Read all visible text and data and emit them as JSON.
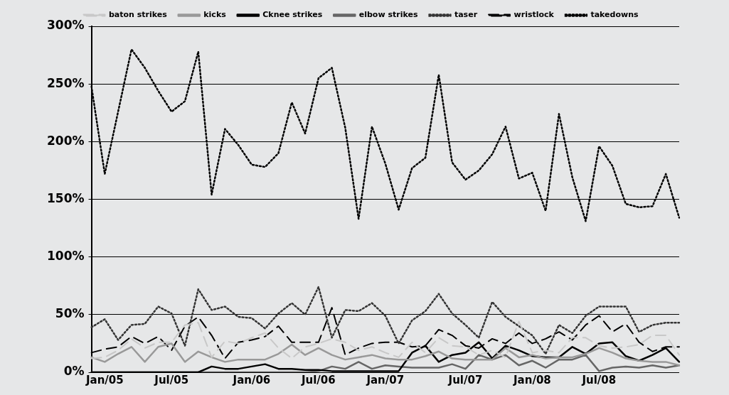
{
  "chart_data": {
    "type": "line",
    "categories": [
      null,
      "Jan/05",
      null,
      null,
      null,
      null,
      "Jul/05",
      null,
      null,
      null,
      null,
      null,
      "Jan/06",
      null,
      null,
      null,
      null,
      "Jul/06",
      null,
      null,
      null,
      null,
      "Jan/07",
      null,
      null,
      null,
      null,
      null,
      "Jul/07",
      null,
      null,
      null,
      null,
      "Jan/08",
      null,
      null,
      null,
      null,
      "Jul/08",
      null,
      null,
      null,
      null,
      null,
      null
    ],
    "ylim": [
      0,
      300
    ],
    "yticks": [
      {
        "value": 0,
        "label": "0%"
      },
      {
        "value": 50,
        "label": "50%"
      },
      {
        "value": 100,
        "label": "100%"
      },
      {
        "value": 150,
        "label": "150%"
      },
      {
        "value": 200,
        "label": "200%"
      },
      {
        "value": 250,
        "label": "250%"
      },
      {
        "value": 300,
        "label": "300%"
      }
    ],
    "grid": "y",
    "legend": "top",
    "marker": "none",
    "series": [
      {
        "name": "baton strikes",
        "color": "#c8c8c8",
        "line_style": "dashed",
        "values": [
          12,
          13,
          19,
          29,
          21,
          26,
          26,
          41,
          43,
          13,
          27,
          25,
          30,
          34,
          21,
          12,
          22,
          25,
          29,
          26,
          19,
          22,
          17,
          13,
          26,
          17,
          30,
          23,
          22,
          15,
          19,
          13,
          44,
          17,
          19,
          17,
          30,
          30,
          23,
          21,
          22,
          24,
          32,
          32,
          15
        ]
      },
      {
        "name": "kicks",
        "color": "#999999",
        "line_style": "solid",
        "values": [
          13,
          9,
          16,
          22,
          9,
          22,
          25,
          9,
          18,
          13,
          9,
          11,
          11,
          11,
          16,
          24,
          15,
          21,
          15,
          11,
          13,
          15,
          12,
          11,
          11,
          14,
          18,
          12,
          11,
          11,
          11,
          21,
          13,
          15,
          12,
          13,
          13,
          16,
          21,
          17,
          12,
          10,
          9,
          9,
          6
        ]
      },
      {
        "name": "Cknee strikes",
        "color": "#000000",
        "line_style": "solid",
        "values": [
          0,
          0,
          0,
          0,
          0,
          0,
          0,
          0,
          0,
          5,
          3,
          3,
          5,
          7,
          3,
          3,
          2,
          2,
          1,
          1,
          1,
          1,
          1,
          1,
          17,
          23,
          9,
          15,
          17,
          26,
          12,
          23,
          19,
          14,
          13,
          13,
          22,
          16,
          25,
          26,
          14,
          10,
          15,
          21,
          9
        ]
      },
      {
        "name": "elbow strikes",
        "color": "#666666",
        "line_style": "solid",
        "values": [
          0,
          0,
          0,
          0,
          0,
          0,
          0,
          0,
          0,
          0,
          0,
          0,
          0,
          0,
          0,
          0,
          0,
          1,
          5,
          3,
          9,
          3,
          6,
          5,
          4,
          4,
          4,
          7,
          3,
          15,
          11,
          15,
          6,
          10,
          4,
          11,
          11,
          15,
          1,
          4,
          5,
          4,
          6,
          4,
          6
        ]
      },
      {
        "name": "taser",
        "color": "#333333",
        "line_style": "dotted",
        "values": [
          39,
          46,
          28,
          41,
          42,
          57,
          51,
          23,
          72,
          54,
          57,
          48,
          47,
          38,
          51,
          60,
          50,
          74,
          30,
          54,
          53,
          60,
          49,
          25,
          45,
          53,
          68,
          51,
          41,
          30,
          61,
          48,
          40,
          32,
          16,
          41,
          34,
          49,
          57,
          57,
          57,
          35,
          41,
          43,
          43
        ]
      },
      {
        "name": "wristlock",
        "color": "#000000",
        "line_style": "dashed",
        "values": [
          17,
          20,
          22,
          31,
          25,
          31,
          19,
          40,
          48,
          32,
          12,
          26,
          28,
          31,
          40,
          26,
          26,
          26,
          56,
          15,
          21,
          25,
          26,
          26,
          22,
          23,
          37,
          32,
          23,
          21,
          29,
          25,
          34,
          25,
          29,
          35,
          28,
          41,
          49,
          35,
          42,
          26,
          18,
          22,
          22
        ]
      },
      {
        "name": "takedowns",
        "color": "#000000",
        "line_style": "dotted",
        "values": [
          248,
          172,
          226,
          280,
          264,
          244,
          226,
          235,
          278,
          154,
          211,
          197,
          180,
          178,
          190,
          234,
          207,
          255,
          264,
          212,
          133,
          213,
          181,
          141,
          177,
          186,
          258,
          182,
          167,
          175,
          189,
          213,
          168,
          173,
          140,
          224,
          169,
          131,
          196,
          179,
          146,
          143,
          144,
          172,
          134
        ]
      }
    ]
  }
}
